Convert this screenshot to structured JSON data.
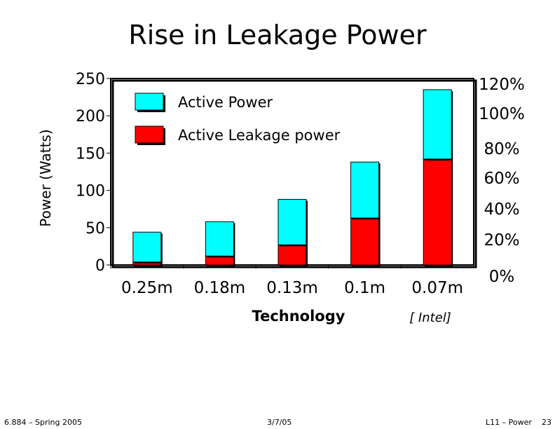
{
  "slide": {
    "title": "Rise in Leakage Power"
  },
  "chart_data": {
    "type": "bar",
    "stacked": true,
    "title": "Rise in Leakage Power",
    "xlabel": "Technology",
    "ylabel": "Power (Watts)",
    "ylim": [
      0,
      250
    ],
    "yticks": [
      0,
      50,
      100,
      150,
      200,
      250
    ],
    "ytick_labels": [
      "0",
      "50",
      "100",
      "150",
      "200",
      "250"
    ],
    "y2_tick_labels": [
      "0%",
      "20%",
      "40%",
      "60%",
      "80%",
      "100%",
      "120%"
    ],
    "categories": [
      "0.25m",
      "0.18m",
      "0.13m",
      "0.1m",
      "0.07m"
    ],
    "series": [
      {
        "name": "Active Leakage power",
        "color": "#ff0000",
        "values": [
          4,
          12,
          27,
          63,
          142
        ]
      },
      {
        "name": "Active Power",
        "color": "#00ffff",
        "values": [
          40,
          46,
          61,
          75,
          93
        ]
      }
    ],
    "legend_order": [
      "Active Power",
      "Active Leakage power"
    ],
    "legend_position": "top-left",
    "source_note": "[ Intel]"
  },
  "footer": {
    "left": "6.884 – Spring 2005",
    "center": "3/7/05",
    "right": "L11 – Power",
    "page": "23"
  }
}
